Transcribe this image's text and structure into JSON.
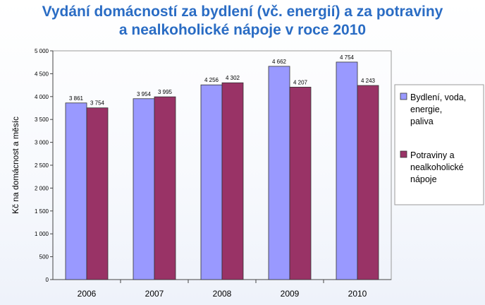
{
  "title_line1": "Vydání domácností za bydlení (vč. energií) a za potraviny",
  "title_line2": "a nealkoholické nápoje v roce 2010",
  "chart_data": {
    "type": "bar",
    "categories": [
      "2006",
      "2007",
      "2008",
      "2009",
      "2010"
    ],
    "series": [
      {
        "name": "Bydlení, voda, energie, paliva",
        "name_lines": [
          "Bydlení, voda,",
          "energie,",
          "paliva"
        ],
        "values": [
          3861,
          3954,
          4256,
          4662,
          4754
        ],
        "labels": [
          "3 861",
          "3 954",
          "4 256",
          "4 662",
          "4 754"
        ],
        "color": "#9999ff"
      },
      {
        "name": "Potraviny a nealkoholické nápoje",
        "name_lines": [
          "Potraviny a",
          "nealkoholické",
          "nápoje"
        ],
        "values": [
          3754,
          3995,
          4302,
          4207,
          4243
        ],
        "labels": [
          "3 754",
          "3 995",
          "4 302",
          "4 207",
          "4 243"
        ],
        "color": "#993366"
      }
    ],
    "ylabel": "Kč na domácnost a měsíc",
    "xlabel": "",
    "ylim": [
      0,
      5000
    ],
    "yticks": [
      0,
      500,
      1000,
      1500,
      2000,
      2500,
      3000,
      3500,
      4000,
      4500,
      5000
    ],
    "ytick_labels": [
      "0",
      "500",
      "1 000",
      "1 500",
      "2 000",
      "2 500",
      "3 000",
      "3 500",
      "4 000",
      "4 500",
      "5 000"
    ],
    "grid": false,
    "legend_position": "right"
  }
}
